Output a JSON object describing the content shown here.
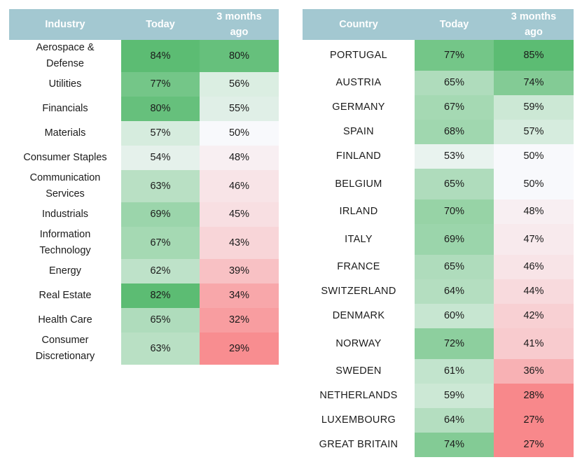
{
  "industry_table": {
    "headers": [
      "Industry",
      "Today",
      "3 months ago"
    ],
    "rows": [
      {
        "label": "Aerospace & Defense",
        "today": "84%",
        "ago": "80%"
      },
      {
        "label": "Utilities",
        "today": "77%",
        "ago": "56%"
      },
      {
        "label": "Financials",
        "today": "80%",
        "ago": "55%"
      },
      {
        "label": "Materials",
        "today": "57%",
        "ago": "50%"
      },
      {
        "label": "Consumer Staples",
        "today": "54%",
        "ago": "48%"
      },
      {
        "label": "Communication Services",
        "today": "63%",
        "ago": "46%"
      },
      {
        "label": "Industrials",
        "today": "69%",
        "ago": "45%"
      },
      {
        "label": "Information Technology",
        "today": "67%",
        "ago": "43%"
      },
      {
        "label": "Energy",
        "today": "62%",
        "ago": "39%"
      },
      {
        "label": "Real Estate",
        "today": "82%",
        "ago": "34%"
      },
      {
        "label": "Health Care",
        "today": "65%",
        "ago": "32%"
      },
      {
        "label": "Consumer Discretionary",
        "today": "63%",
        "ago": "29%"
      }
    ]
  },
  "country_table": {
    "headers": [
      "Country",
      "Today",
      "3 months ago"
    ],
    "rows": [
      {
        "label": "PORTUGAL",
        "today": "77%",
        "ago": "85%"
      },
      {
        "label": "AUSTRIA",
        "today": "65%",
        "ago": "74%"
      },
      {
        "label": "GERMANY",
        "today": "67%",
        "ago": "59%"
      },
      {
        "label": "SPAIN",
        "today": "68%",
        "ago": "57%"
      },
      {
        "label": "FINLAND",
        "today": "53%",
        "ago": "50%"
      },
      {
        "label": "BELGIUM",
        "today": "65%",
        "ago": "50%"
      },
      {
        "label": "IRLAND",
        "today": "70%",
        "ago": "48%"
      },
      {
        "label": "ITALY",
        "today": "69%",
        "ago": "47%"
      },
      {
        "label": "FRANCE",
        "today": "65%",
        "ago": "46%"
      },
      {
        "label": "SWITZERLAND",
        "today": "64%",
        "ago": "44%"
      },
      {
        "label": "DENMARK",
        "today": "60%",
        "ago": "42%"
      },
      {
        "label": "NORWAY",
        "today": "72%",
        "ago": "41%"
      },
      {
        "label": "SWEDEN",
        "today": "61%",
        "ago": "36%"
      },
      {
        "label": "NETHERLANDS",
        "today": "59%",
        "ago": "28%"
      },
      {
        "label": "LUXEMBOURG",
        "today": "64%",
        "ago": "27%"
      },
      {
        "label": "GREAT BRITAIN",
        "today": "74%",
        "ago": "27%"
      }
    ]
  },
  "colors": {
    "header_bg": "#a3c8d1",
    "header_text": "#ffffff",
    "green_strong": "#5cbc73",
    "neutral": "#f8f9fc",
    "red_strong": "#f8888b"
  }
}
